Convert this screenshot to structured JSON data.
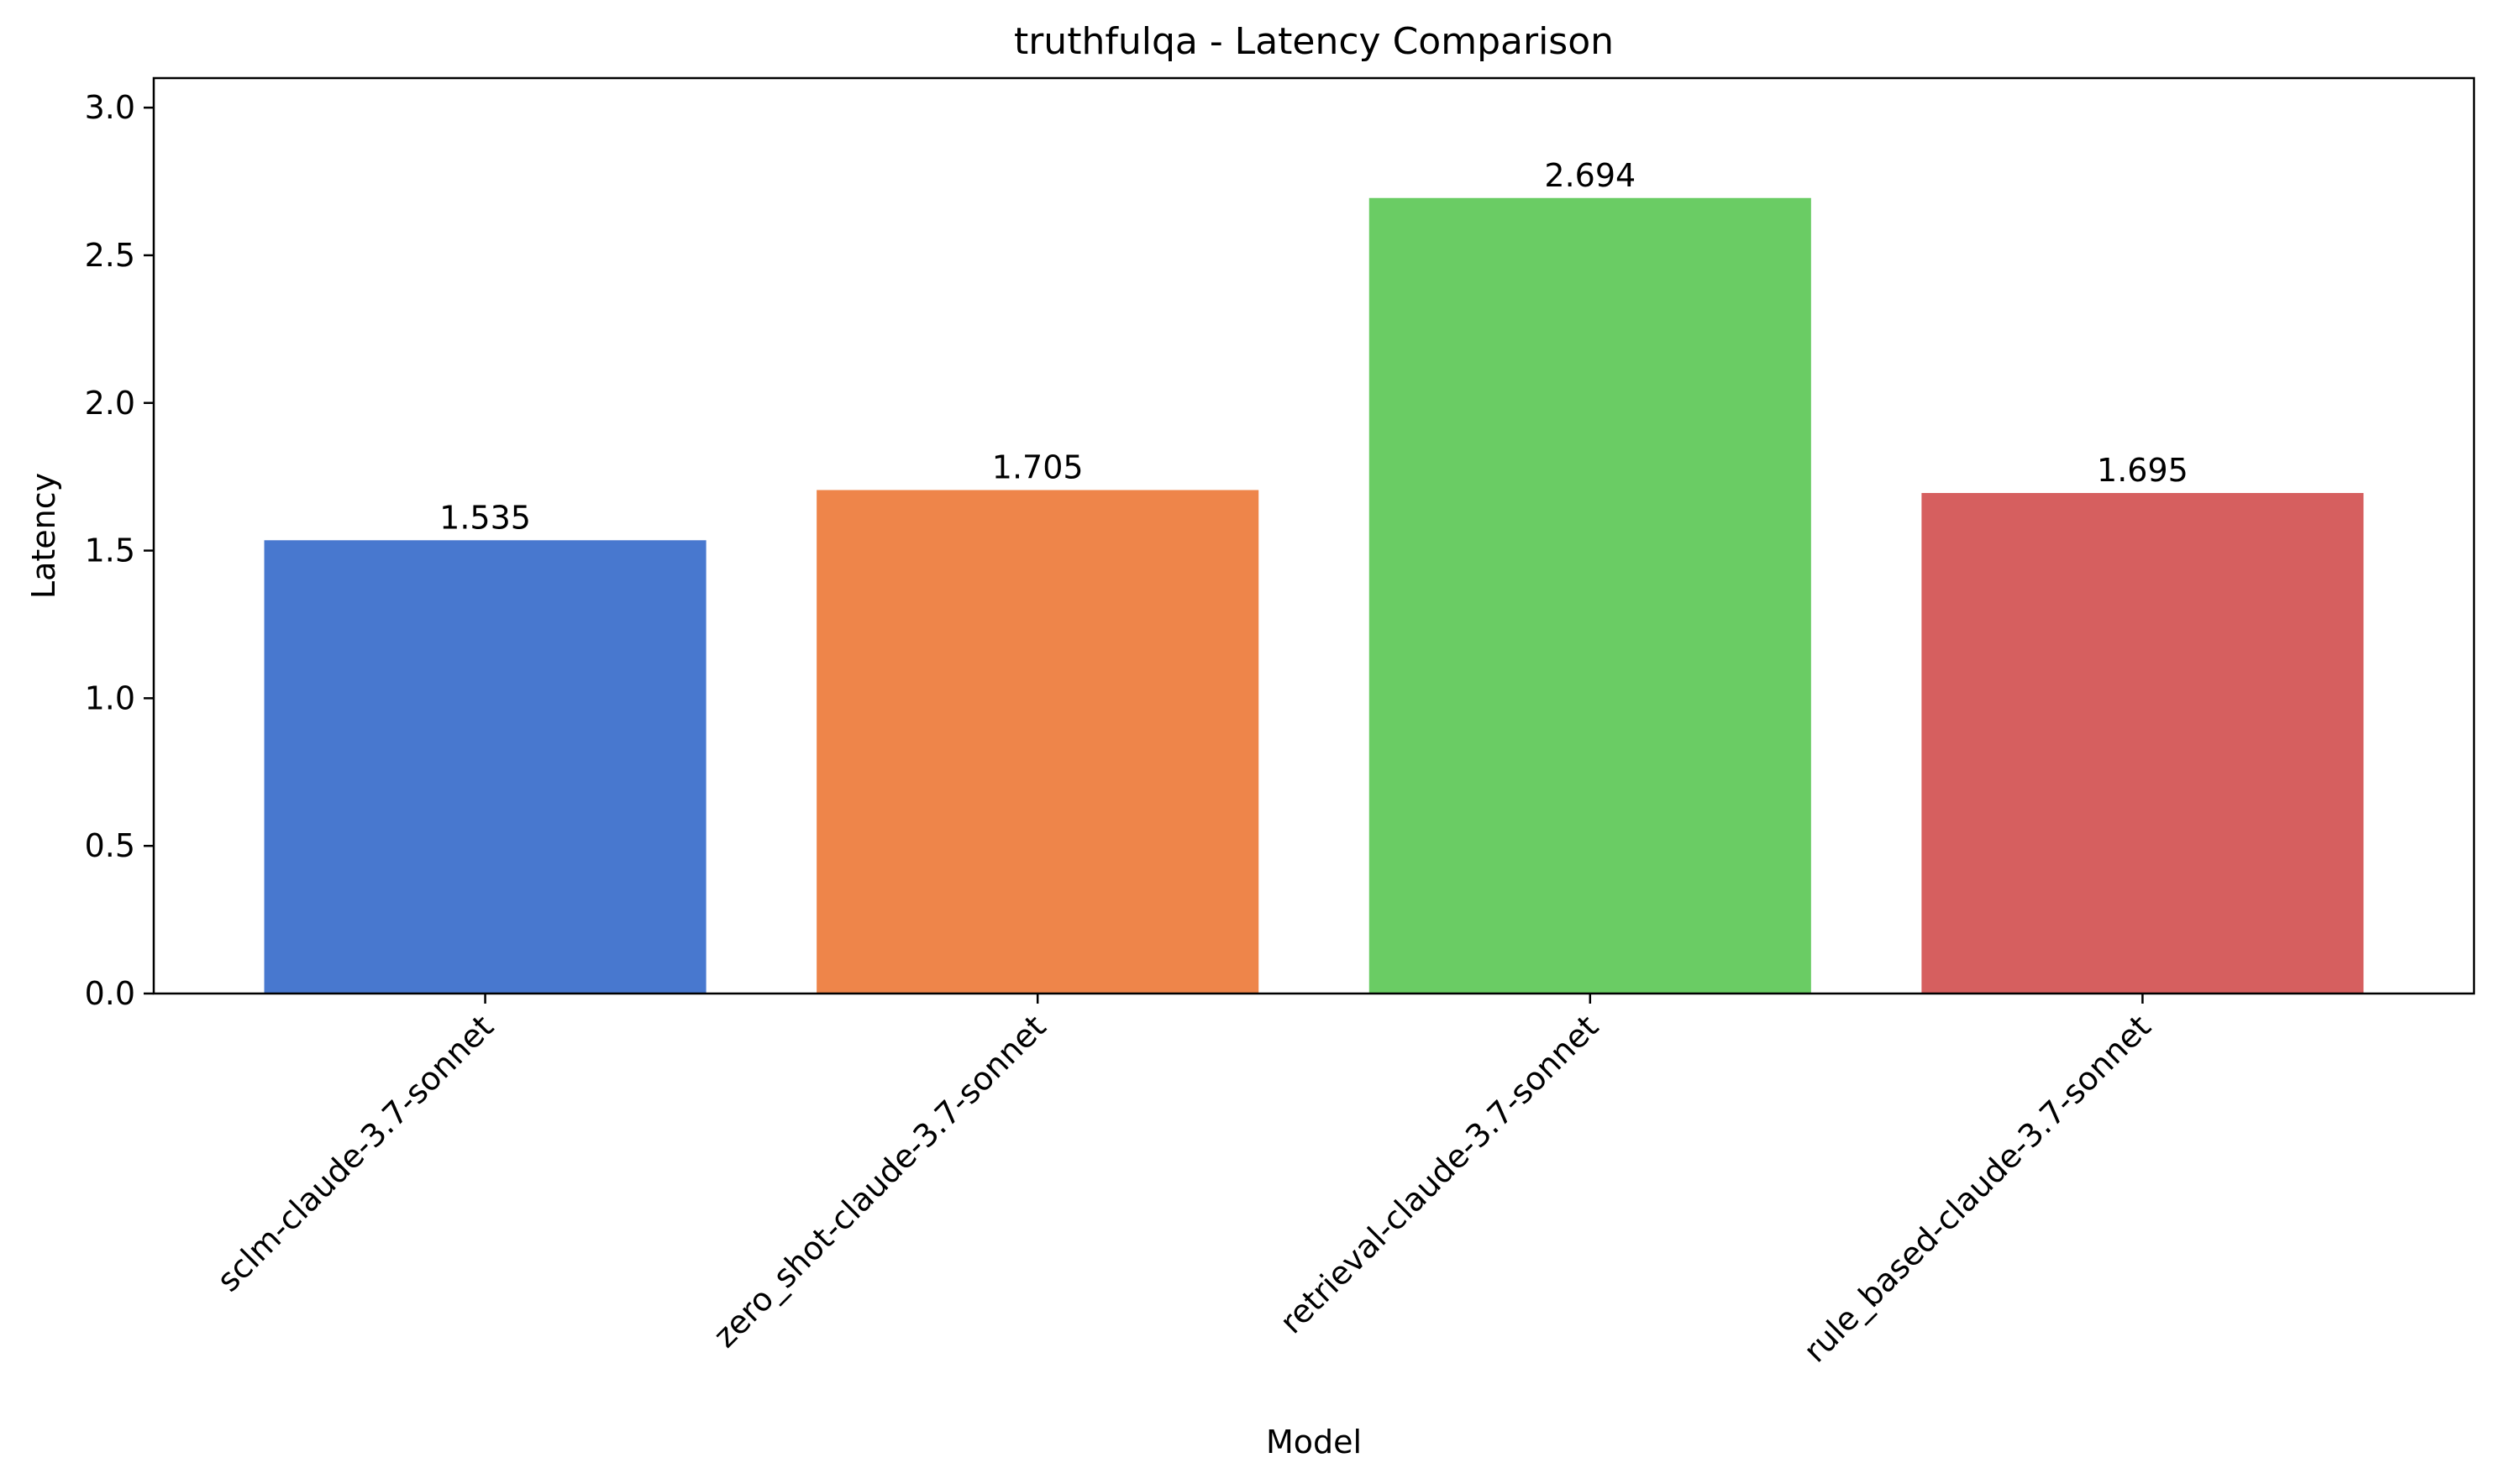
{
  "chart_data": {
    "type": "bar",
    "title": "truthfulqa - Latency Comparison",
    "xlabel": "Model",
    "ylabel": "Latency",
    "categories": [
      "sclm-claude-3.7-sonnet",
      "zero_shot-claude-3.7-sonnet",
      "retrieval-claude-3.7-sonnet",
      "rule_based-claude-3.7-sonnet"
    ],
    "values": [
      1.535,
      1.705,
      2.694,
      1.695
    ],
    "value_labels": [
      "1.535",
      "1.705",
      "2.694",
      "1.695"
    ],
    "colors": [
      "#4878cf",
      "#ee854a",
      "#6acc64",
      "#d65f5f"
    ],
    "ylim": [
      0,
      3.1
    ],
    "yticks": [
      0.0,
      0.5,
      1.0,
      1.5,
      2.0,
      2.5,
      3.0
    ],
    "ytick_labels": [
      "0.0",
      "0.5",
      "1.0",
      "1.5",
      "2.0",
      "2.5",
      "3.0"
    ],
    "grid": false,
    "legend": "none"
  }
}
